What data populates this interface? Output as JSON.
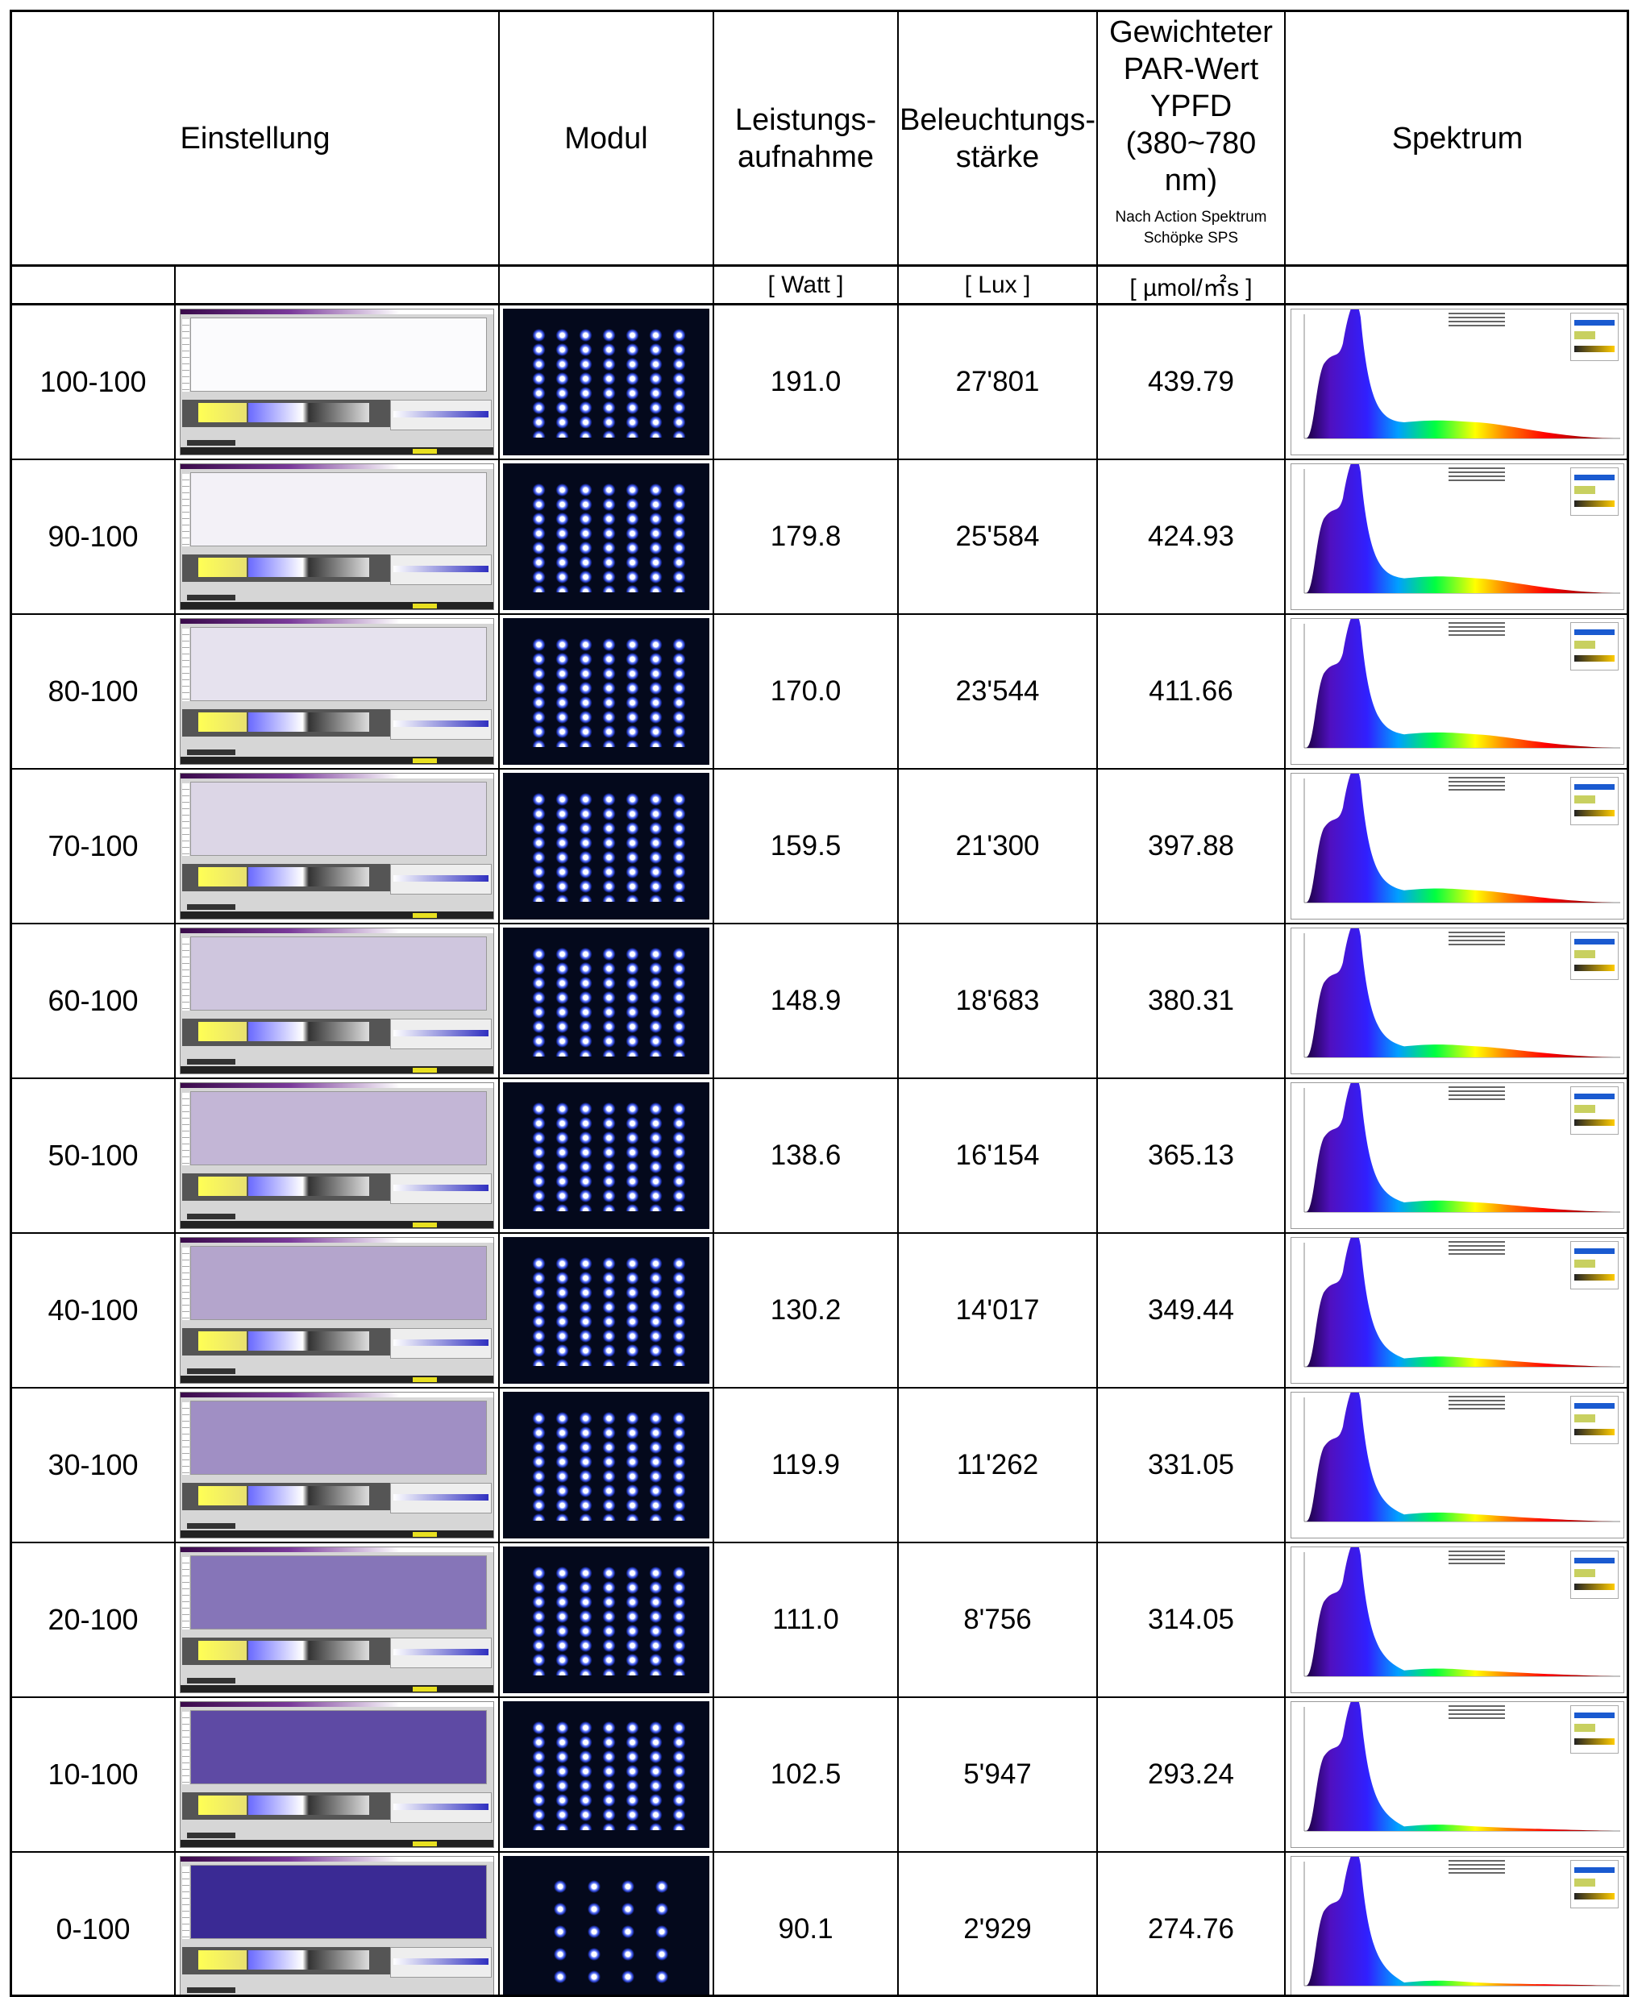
{
  "headers": {
    "einstellung": "Einstellung",
    "modul": "Modul",
    "leistung": "Leistungs-\naufnahme",
    "beleuchtung": "Beleuchtungs-\nstärke",
    "par_title": "Gewichteter\nPAR-Wert\nYPFD\n(380~780\nnm)",
    "par_note": "Nach Action Spektrum\nSchöpke SPS",
    "spektrum": "Spektrum"
  },
  "units": {
    "leistung": "[ Watt ]",
    "beleuchtung": "[ Lux ]",
    "par": "[ µmol/㎡s ]"
  },
  "rows": [
    {
      "einstellung": "100-100",
      "leistung": "191.0",
      "lux": "27'801",
      "par": "439.79",
      "plot_tint": "#fbfbfd"
    },
    {
      "einstellung": "90-100",
      "leistung": "179.8",
      "lux": "25'584",
      "par": "424.93",
      "plot_tint": "#f3f1f7"
    },
    {
      "einstellung": "80-100",
      "leistung": "170.0",
      "lux": "23'544",
      "par": "411.66",
      "plot_tint": "#e6e2ee"
    },
    {
      "einstellung": "70-100",
      "leistung": "159.5",
      "lux": "21'300",
      "par": "397.88",
      "plot_tint": "#dcd6e6"
    },
    {
      "einstellung": "60-100",
      "leistung": "148.9",
      "lux": "18'683",
      "par": "380.31",
      "plot_tint": "#cfc6de"
    },
    {
      "einstellung": "50-100",
      "leistung": "138.6",
      "lux": "16'154",
      "par": "365.13",
      "plot_tint": "#c3b6d6"
    },
    {
      "einstellung": "40-100",
      "leistung": "130.2",
      "lux": "14'017",
      "par": "349.44",
      "plot_tint": "#b4a5cc"
    },
    {
      "einstellung": "30-100",
      "leistung": "119.9",
      "lux": "11'262",
      "par": "331.05",
      "plot_tint": "#a08fc4"
    },
    {
      "einstellung": "20-100",
      "leistung": "111.0",
      "lux": "8'756",
      "par": "314.05",
      "plot_tint": "#8675b8"
    },
    {
      "einstellung": "10-100",
      "leistung": "102.5",
      "lux": "5'947",
      "par": "293.24",
      "plot_tint": "#5e4aa4"
    },
    {
      "einstellung": "0-100",
      "leistung": "90.1",
      "lux": "2'929",
      "par": "274.76",
      "plot_tint": "#3a2a94"
    }
  ]
}
